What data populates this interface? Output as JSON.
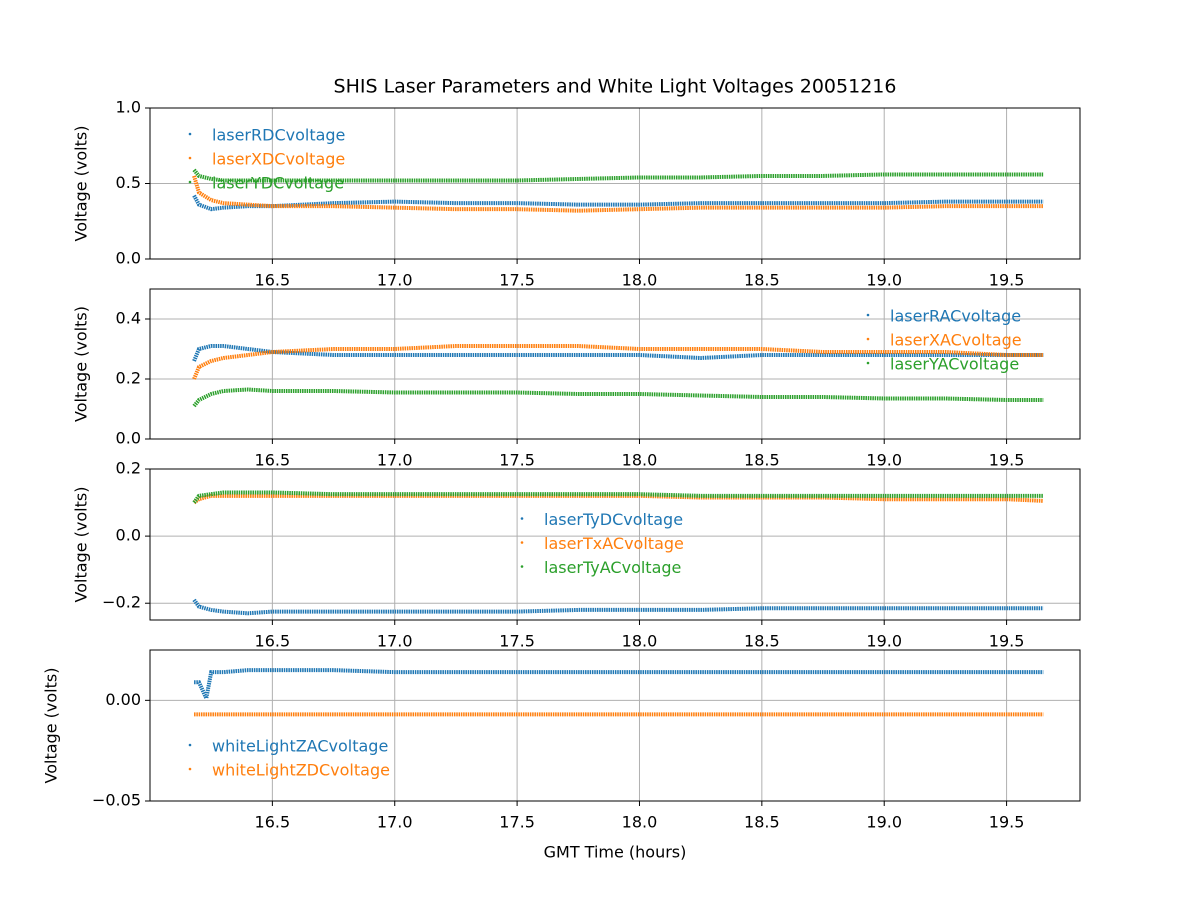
{
  "chart_data": [
    {
      "type": "line",
      "title": "SHIS Laser Parameters and White Light Voltages 20051216",
      "y_label": "Voltage (volts)",
      "x": [
        16.18,
        16.2,
        16.25,
        16.3,
        16.4,
        16.5,
        16.75,
        17.0,
        17.25,
        17.5,
        17.75,
        18.0,
        18.25,
        18.5,
        18.75,
        19.0,
        19.25,
        19.5,
        19.65
      ],
      "series": [
        {
          "name": "laserRDCvoltage",
          "color": "#1f77b4",
          "values": [
            0.42,
            0.36,
            0.33,
            0.34,
            0.35,
            0.35,
            0.37,
            0.38,
            0.37,
            0.37,
            0.36,
            0.36,
            0.37,
            0.37,
            0.37,
            0.37,
            0.38,
            0.38,
            0.38
          ]
        },
        {
          "name": "laserXDCvoltage",
          "color": "#ff7f0e",
          "values": [
            0.55,
            0.44,
            0.39,
            0.37,
            0.36,
            0.35,
            0.35,
            0.34,
            0.33,
            0.33,
            0.32,
            0.33,
            0.34,
            0.34,
            0.34,
            0.34,
            0.35,
            0.35,
            0.35
          ]
        },
        {
          "name": "laserYDCvoltage",
          "color": "#2ca02c",
          "values": [
            0.59,
            0.55,
            0.53,
            0.52,
            0.52,
            0.52,
            0.52,
            0.52,
            0.52,
            0.52,
            0.53,
            0.54,
            0.54,
            0.55,
            0.55,
            0.56,
            0.56,
            0.56,
            0.56
          ]
        }
      ],
      "xlim": [
        16.0,
        19.8
      ],
      "xticks": [
        16.5,
        {
          "value": 17,
          "label": "17.0"
        },
        17.5,
        {
          "value": 18,
          "label": "18.0"
        },
        18.5,
        {
          "value": 19,
          "label": "19.0"
        },
        19.5
      ],
      "ylim": [
        0,
        1
      ],
      "yticks": [
        {
          "value": 0,
          "label": "0.0"
        },
        0.5,
        {
          "value": 1,
          "label": "1.0"
        }
      ],
      "grid": true,
      "legend": "upper left"
    },
    {
      "type": "line",
      "y_label": "Voltage (volts)",
      "x": [
        16.18,
        16.2,
        16.25,
        16.3,
        16.4,
        16.5,
        16.75,
        17.0,
        17.25,
        17.5,
        17.75,
        18.0,
        18.25,
        18.5,
        18.75,
        19.0,
        19.25,
        19.5,
        19.65
      ],
      "series": [
        {
          "name": "laserRACvoltage",
          "color": "#1f77b4",
          "values": [
            0.26,
            0.3,
            0.31,
            0.31,
            0.3,
            0.29,
            0.28,
            0.28,
            0.28,
            0.28,
            0.28,
            0.28,
            0.27,
            0.28,
            0.28,
            0.28,
            0.28,
            0.28,
            0.28
          ]
        },
        {
          "name": "laserXACvoltage",
          "color": "#ff7f0e",
          "values": [
            0.2,
            0.24,
            0.26,
            0.27,
            0.28,
            0.29,
            0.3,
            0.3,
            0.31,
            0.31,
            0.31,
            0.3,
            0.3,
            0.3,
            0.29,
            0.29,
            0.29,
            0.28,
            0.28
          ]
        },
        {
          "name": "laserYACvoltage",
          "color": "#2ca02c",
          "values": [
            0.11,
            0.13,
            0.15,
            0.16,
            0.165,
            0.16,
            0.16,
            0.155,
            0.155,
            0.155,
            0.15,
            0.15,
            0.145,
            0.14,
            0.14,
            0.135,
            0.135,
            0.13,
            0.13
          ]
        }
      ],
      "xlim": [
        16.0,
        19.8
      ],
      "xticks": [
        16.5,
        {
          "value": 17,
          "label": "17.0"
        },
        17.5,
        {
          "value": 18,
          "label": "18.0"
        },
        18.5,
        {
          "value": 19,
          "label": "19.0"
        },
        19.5
      ],
      "ylim": [
        0,
        0.5
      ],
      "yticks": [
        {
          "value": 0,
          "label": "0.0"
        },
        0.2,
        0.4
      ],
      "grid": true,
      "legend": "upper right"
    },
    {
      "type": "line",
      "y_label": "Voltage (volts)",
      "x": [
        16.18,
        16.2,
        16.25,
        16.3,
        16.4,
        16.5,
        16.75,
        17.0,
        17.25,
        17.5,
        17.75,
        18.0,
        18.25,
        18.5,
        18.75,
        19.0,
        19.25,
        19.5,
        19.65
      ],
      "series": [
        {
          "name": "laserTyDCvoltage",
          "color": "#1f77b4",
          "values": [
            -0.19,
            -0.21,
            -0.22,
            -0.225,
            -0.23,
            -0.225,
            -0.225,
            -0.225,
            -0.225,
            -0.225,
            -0.22,
            -0.22,
            -0.22,
            -0.215,
            -0.215,
            -0.215,
            -0.215,
            -0.215,
            -0.215
          ]
        },
        {
          "name": "laserTxACvoltage",
          "color": "#ff7f0e",
          "values": [
            0.1,
            0.11,
            0.12,
            0.12,
            0.12,
            0.12,
            0.12,
            0.12,
            0.12,
            0.12,
            0.12,
            0.12,
            0.115,
            0.115,
            0.115,
            0.11,
            0.11,
            0.11,
            0.105
          ]
        },
        {
          "name": "laserTyACvoltage",
          "color": "#2ca02c",
          "values": [
            0.1,
            0.12,
            0.125,
            0.13,
            0.13,
            0.13,
            0.125,
            0.125,
            0.125,
            0.125,
            0.125,
            0.125,
            0.12,
            0.12,
            0.12,
            0.12,
            0.12,
            0.12,
            0.12
          ]
        }
      ],
      "xlim": [
        16.0,
        19.8
      ],
      "xticks": [
        16.5,
        {
          "value": 17,
          "label": "17.0"
        },
        17.5,
        {
          "value": 18,
          "label": "18.0"
        },
        18.5,
        {
          "value": 19,
          "label": "19.0"
        },
        19.5
      ],
      "ylim": [
        -0.25,
        0.2
      ],
      "yticks": [
        {
          "value": -0.2,
          "label": "−0.2"
        },
        {
          "value": 0,
          "label": "0.0"
        },
        0.2
      ],
      "grid": true,
      "legend": "center"
    },
    {
      "type": "line",
      "y_label": "Voltage (volts)",
      "x_label": "GMT Time (hours)",
      "x": [
        16.18,
        16.2,
        16.23,
        16.25,
        16.3,
        16.4,
        16.5,
        16.75,
        17.0,
        17.25,
        17.5,
        17.75,
        18.0,
        18.25,
        18.5,
        18.75,
        19.0,
        19.25,
        19.5,
        19.65
      ],
      "series": [
        {
          "name": "whiteLightZACvoltage",
          "color": "#1f77b4",
          "values": [
            0.009,
            0.009,
            0.001,
            0.014,
            0.014,
            0.015,
            0.015,
            0.015,
            0.014,
            0.014,
            0.014,
            0.014,
            0.014,
            0.014,
            0.014,
            0.014,
            0.014,
            0.014,
            0.014,
            0.014
          ]
        },
        {
          "name": "whiteLightZDCvoltage",
          "color": "#ff7f0e",
          "values": [
            -0.007,
            -0.007,
            -0.007,
            -0.007,
            -0.007,
            -0.007,
            -0.007,
            -0.007,
            -0.007,
            -0.007,
            -0.007,
            -0.007,
            -0.007,
            -0.007,
            -0.007,
            -0.007,
            -0.007,
            -0.007,
            -0.007,
            -0.007
          ]
        }
      ],
      "xlim": [
        16.0,
        19.8
      ],
      "xticks": [
        16.5,
        {
          "value": 17,
          "label": "17.0"
        },
        17.5,
        {
          "value": 18,
          "label": "18.0"
        },
        18.5,
        {
          "value": 19,
          "label": "19.0"
        },
        19.5
      ],
      "ylim": [
        -0.05,
        0.025
      ],
      "yticks": [
        {
          "value": -0.05,
          "label": "−0.05"
        },
        {
          "value": 0,
          "label": "0.00"
        }
      ],
      "grid": true,
      "legend": "lower left"
    }
  ]
}
